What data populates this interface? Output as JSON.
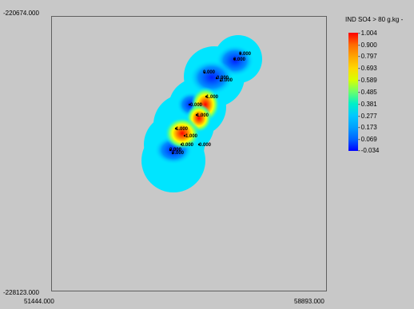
{
  "map": {
    "y_top": "-220674.000",
    "y_bottom": "-228123.000",
    "x_left": "51444.000",
    "x_right": "58893.000",
    "point_labels": [
      "0.000",
      "0.000",
      "0.000",
      "0.000",
      "0.000",
      "1.000",
      "0.000",
      "1.000",
      "1.000",
      "1.000",
      "0.000",
      "0.000",
      "0.000",
      "0.000"
    ]
  },
  "legend": {
    "title": "IND SO4 > 80 g.kg -",
    "ticks": [
      "1.004",
      "0.900",
      "0.797",
      "0.693",
      "0.589",
      "0.485",
      "0.381",
      "0.277",
      "0.173",
      "0.069",
      "-0.034"
    ],
    "colors": {
      "high": "#ff0000",
      "mid": "#ffff00",
      "low": "#0000ff",
      "background_fill": "#00e5ff"
    }
  }
}
